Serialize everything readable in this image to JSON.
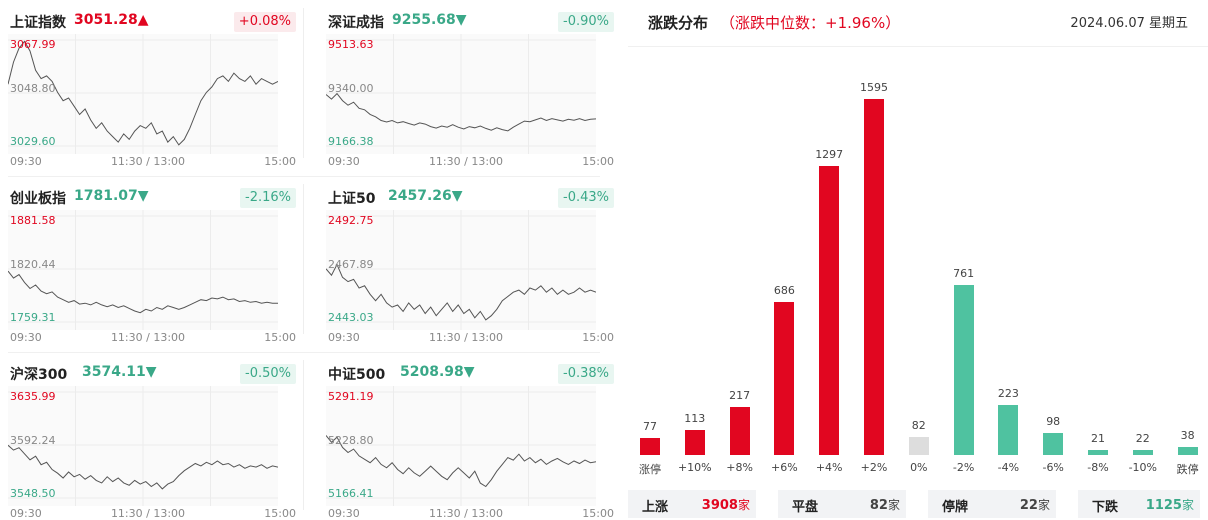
{
  "colors": {
    "up": "#e10620",
    "down": "#4fc2a0",
    "flat": "#dddddd",
    "line": "#555555"
  },
  "indices": [
    {
      "name": "上证指数",
      "price": "3051.28",
      "arrow": "▲",
      "dir": "up",
      "change": "+0.08%",
      "high": "3067.99",
      "mid": "3048.80",
      "low": "3029.60",
      "time_start": "09:30",
      "time_mid": "11:30 / 13:00",
      "time_end": "15:00",
      "series": [
        3052,
        3060,
        3065,
        3067.5,
        3064,
        3057,
        3054,
        3055,
        3053,
        3049,
        3046,
        3047,
        3044,
        3041,
        3043,
        3039,
        3036,
        3038,
        3035,
        3033,
        3031,
        3034,
        3032,
        3035,
        3037,
        3036,
        3038,
        3034,
        3035,
        3031,
        3033,
        3030,
        3032,
        3036,
        3041,
        3046,
        3049,
        3051,
        3054,
        3055,
        3053,
        3056,
        3054,
        3053,
        3055,
        3052,
        3054,
        3053,
        3052,
        3053
      ]
    },
    {
      "name": "深证成指",
      "price": "9255.68",
      "arrow": "▼",
      "dir": "down",
      "change": "-0.90%",
      "high": "9513.63",
      "mid": "9340.00",
      "low": "9166.38",
      "time_start": "09:30",
      "time_mid": "11:30 / 13:00",
      "time_end": "15:00",
      "series": [
        9335,
        9320,
        9338,
        9315,
        9300,
        9310,
        9290,
        9285,
        9270,
        9262,
        9250,
        9245,
        9250,
        9242,
        9246,
        9240,
        9235,
        9242,
        9238,
        9230,
        9225,
        9232,
        9228,
        9236,
        9228,
        9222,
        9230,
        9226,
        9232,
        9224,
        9218,
        9226,
        9220,
        9216,
        9228,
        9238,
        9248,
        9246,
        9252,
        9258,
        9250,
        9256,
        9252,
        9248,
        9254,
        9251,
        9256,
        9250,
        9254,
        9255
      ]
    },
    {
      "name": "创业板指",
      "price": "1781.07",
      "arrow": "▼",
      "dir": "down",
      "change": "-2.16%",
      "high": "1881.58",
      "mid": "1820.44",
      "low": "1759.31",
      "time_start": "09:30",
      "time_mid": "11:30 / 13:00",
      "time_end": "15:00",
      "series": [
        1818,
        1810,
        1814,
        1805,
        1798,
        1802,
        1795,
        1792,
        1794,
        1788,
        1785,
        1782,
        1784,
        1780,
        1781,
        1779,
        1782,
        1779,
        1777,
        1779,
        1776,
        1778,
        1775,
        1772,
        1770,
        1774,
        1772,
        1776,
        1774,
        1778,
        1776,
        1774,
        1776,
        1779,
        1782,
        1785,
        1784,
        1787,
        1786,
        1788,
        1785,
        1786,
        1783,
        1784,
        1782,
        1783,
        1781,
        1782,
        1781,
        1781
      ]
    },
    {
      "name": "上证50",
      "price": "2457.26",
      "arrow": "▼",
      "dir": "down",
      "change": "-0.43%",
      "high": "2492.75",
      "mid": "2467.89",
      "low": "2443.03",
      "time_start": "09:30",
      "time_mid": "11:30 / 13:00",
      "time_end": "15:00",
      "series": [
        2468,
        2465,
        2470,
        2464,
        2462,
        2463,
        2459,
        2460,
        2456,
        2453,
        2456,
        2452,
        2450,
        2451,
        2448,
        2452,
        2449,
        2451,
        2447,
        2450,
        2446,
        2449,
        2452,
        2448,
        2451,
        2447,
        2449,
        2445,
        2448,
        2444,
        2446,
        2449,
        2453,
        2455,
        2457,
        2458,
        2456,
        2459,
        2458,
        2460,
        2457,
        2459,
        2456,
        2458,
        2456,
        2457,
        2459,
        2457,
        2458,
        2457
      ]
    },
    {
      "name": "沪深300",
      "price": "3574.11",
      "arrow": "▼",
      "dir": "down",
      "change": "-0.50%",
      "high": "3635.99",
      "mid": "3592.24",
      "low": "3548.50",
      "time_start": "09:30",
      "time_mid": "11:30 / 13:00",
      "time_end": "15:00",
      "series": [
        3592,
        3588,
        3590,
        3585,
        3580,
        3583,
        3576,
        3578,
        3572,
        3569,
        3565,
        3570,
        3566,
        3568,
        3564,
        3567,
        3563,
        3561,
        3566,
        3562,
        3565,
        3561,
        3559,
        3563,
        3560,
        3562,
        3558,
        3561,
        3556,
        3560,
        3562,
        3567,
        3571,
        3574,
        3577,
        3575,
        3578,
        3576,
        3579,
        3576,
        3577,
        3574,
        3576,
        3573,
        3575,
        3574,
        3576,
        3573,
        3575,
        3574
      ]
    },
    {
      "name": "中证500",
      "price": "5208.98",
      "arrow": "▼",
      "dir": "down",
      "change": "-0.38%",
      "high": "5291.19",
      "mid": "5228.80",
      "low": "5166.41",
      "time_start": "09:30",
      "time_mid": "11:30 / 13:00",
      "time_end": "15:00",
      "series": [
        5240,
        5232,
        5238,
        5226,
        5220,
        5224,
        5216,
        5212,
        5208,
        5214,
        5206,
        5202,
        5208,
        5200,
        5195,
        5202,
        5196,
        5192,
        5198,
        5204,
        5198,
        5192,
        5188,
        5196,
        5202,
        5196,
        5190,
        5198,
        5184,
        5180,
        5188,
        5198,
        5206,
        5214,
        5211,
        5218,
        5210,
        5214,
        5208,
        5212,
        5206,
        5210,
        5213,
        5209,
        5206,
        5210,
        5207,
        5211,
        5208,
        5209
      ]
    }
  ],
  "distribution": {
    "title": "涨跌分布",
    "subtitle": "（涨跌中位数：+1.96%）",
    "date": "2024.06.07 星期五",
    "chart_data": {
      "type": "bar",
      "categories": [
        "涨停",
        "+10%",
        "+8%",
        "+6%",
        "+4%",
        "+2%",
        "0%",
        "-2%",
        "-4%",
        "-6%",
        "-8%",
        "-10%",
        "跌停"
      ],
      "values": [
        77,
        113,
        217,
        686,
        1297,
        1595,
        82,
        761,
        223,
        98,
        21,
        22,
        38
      ],
      "directions": [
        "up",
        "up",
        "up",
        "up",
        "up",
        "up",
        "flat",
        "down",
        "down",
        "down",
        "down",
        "down",
        "down"
      ]
    },
    "labels": [
      "77",
      "113",
      "217",
      "686",
      "1297",
      "1595",
      "82",
      "761",
      "223",
      "98",
      "21",
      "22",
      "38"
    ],
    "summary": [
      {
        "label": "上涨",
        "value": "3908",
        "unit": "家",
        "dir": "up"
      },
      {
        "label": "平盘",
        "value": "82",
        "unit": "家",
        "dir": "flat"
      },
      {
        "label": "停牌",
        "value": "22",
        "unit": "家",
        "dir": "flat"
      },
      {
        "label": "下跌",
        "value": "1125",
        "unit": "家",
        "dir": "down"
      }
    ]
  }
}
